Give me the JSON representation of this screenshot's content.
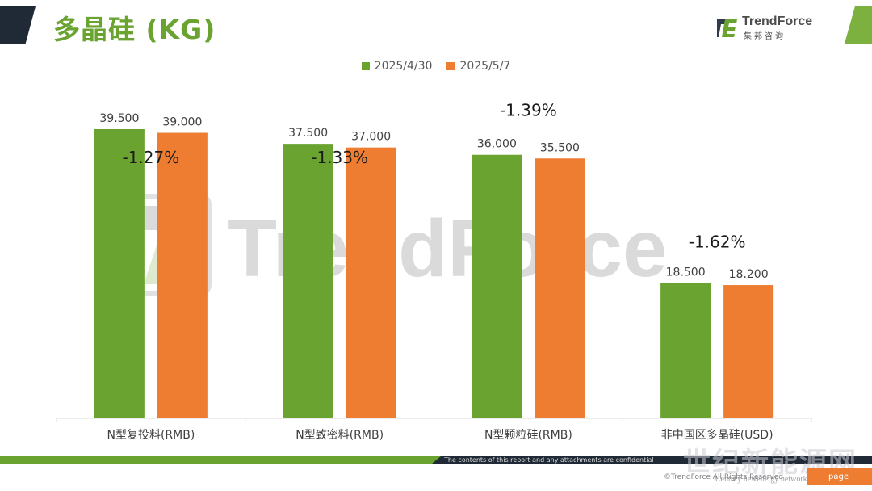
{
  "slide": {
    "title": "多晶硅 (KG)",
    "brand_name": "TrendForce",
    "brand_sub": "集邦咨询",
    "watermark": "TrendForce",
    "footer_note": "The contents of this report and any attachments are confidential",
    "copyright": "©TrendForce All Rights Reserved",
    "page_label": "page",
    "site_watermark": "世纪新能源网",
    "site_watermark_sub": "Century newenergy network"
  },
  "colors": {
    "series_1": "#6aa330",
    "series_2": "#ee7d31",
    "title": "#6aa330",
    "label": "#404040"
  },
  "chart_data": {
    "type": "bar",
    "categories": [
      "N型复投料(RMB)",
      "N型致密料(RMB)",
      "N型颗粒硅(RMB)",
      "非中国区多晶硅(USD)"
    ],
    "series": [
      {
        "name": "2025/4/30",
        "values": [
          39.5,
          37.5,
          36.0,
          18.5
        ],
        "labels": [
          "39.500",
          "37.500",
          "36.000",
          "18.500"
        ]
      },
      {
        "name": "2025/5/7",
        "values": [
          39.0,
          37.0,
          35.5,
          18.2
        ],
        "labels": [
          "39.000",
          "37.000",
          "35.500",
          "18.200"
        ]
      }
    ],
    "annotations": [
      "-1.27%",
      "-1.33%",
      "-1.39%",
      "-1.62%"
    ],
    "ylim": [
      0,
      40
    ],
    "legend": "top-center",
    "grid": false,
    "title": "",
    "xlabel": "",
    "ylabel": ""
  }
}
